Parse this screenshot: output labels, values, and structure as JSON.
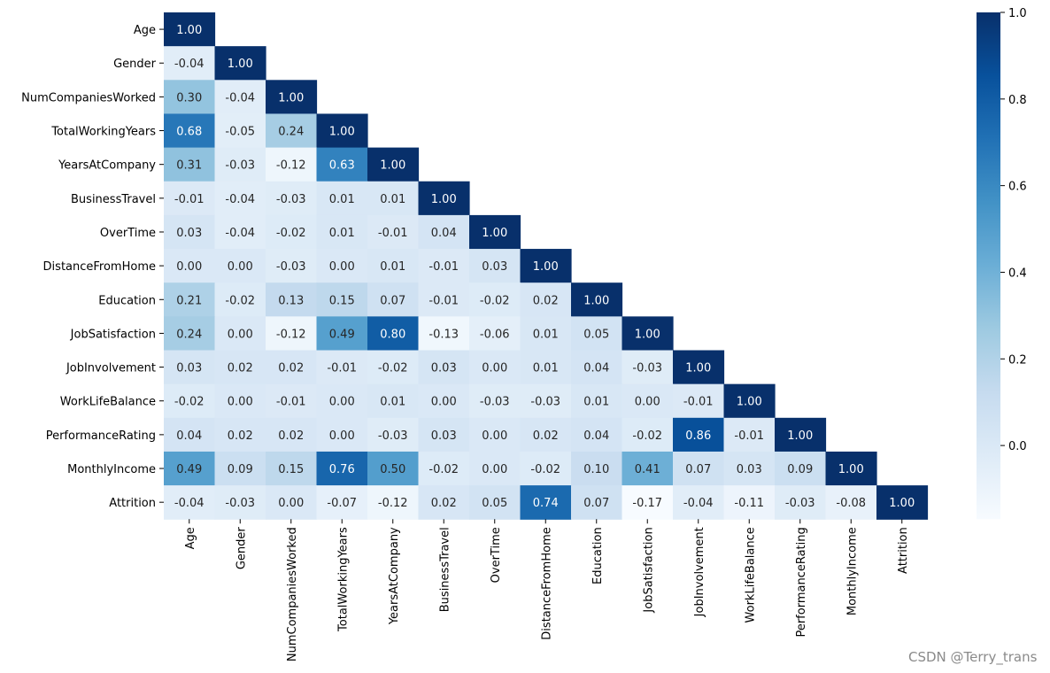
{
  "chart_data": {
    "type": "heatmap",
    "title": "",
    "xlabel": "",
    "ylabel": "",
    "mask": "lower-triangle-with-diagonal",
    "colormap": "Blues",
    "variables": [
      "Age",
      "Gender",
      "NumCompaniesWorked",
      "TotalWorkingYears",
      "YearsAtCompany",
      "BusinessTravel",
      "OverTime",
      "DistanceFromHome",
      "Education",
      "JobSatisfaction",
      "JobInvolvement",
      "WorkLifeBalance",
      "PerformanceRating",
      "MonthlyIncome",
      "Attrition"
    ],
    "values": [
      [
        1.0
      ],
      [
        -0.04,
        1.0
      ],
      [
        0.3,
        -0.04,
        1.0
      ],
      [
        0.68,
        -0.05,
        0.24,
        1.0
      ],
      [
        0.31,
        -0.03,
        -0.12,
        0.63,
        1.0
      ],
      [
        -0.01,
        -0.04,
        -0.03,
        0.01,
        0.01,
        1.0
      ],
      [
        0.03,
        -0.04,
        -0.02,
        0.01,
        -0.01,
        0.04,
        1.0
      ],
      [
        -0.0,
        -0.0,
        -0.03,
        0.0,
        0.01,
        -0.01,
        0.03,
        1.0
      ],
      [
        0.21,
        -0.02,
        0.13,
        0.15,
        0.07,
        -0.01,
        -0.02,
        0.02,
        1.0
      ],
      [
        0.24,
        -0.0,
        -0.12,
        0.49,
        0.8,
        -0.13,
        -0.06,
        0.01,
        0.05,
        1.0
      ],
      [
        0.03,
        0.02,
        0.02,
        -0.01,
        -0.02,
        0.03,
        -0.0,
        0.01,
        0.04,
        -0.03,
        1.0
      ],
      [
        -0.02,
        -0.0,
        -0.01,
        0.0,
        0.01,
        0.0,
        -0.03,
        -0.03,
        0.01,
        -0.0,
        -0.01,
        1.0
      ],
      [
        0.04,
        0.02,
        0.02,
        -0.0,
        -0.03,
        0.03,
        -0.0,
        0.02,
        0.04,
        -0.02,
        0.86,
        -0.01,
        1.0
      ],
      [
        0.49,
        0.09,
        0.15,
        0.76,
        0.5,
        -0.02,
        0.0,
        -0.02,
        0.1,
        0.41,
        0.07,
        0.03,
        0.09,
        1.0
      ],
      [
        -0.04,
        -0.03,
        -0.0,
        -0.07,
        -0.12,
        0.02,
        0.05,
        0.74,
        0.07,
        -0.17,
        -0.04,
        -0.11,
        -0.03,
        -0.08,
        1.0
      ]
    ],
    "colorbar": {
      "range": [
        -0.17,
        1.0
      ],
      "ticks": [
        0.0,
        0.2,
        0.4,
        0.6,
        0.8,
        1.0
      ],
      "tick_labels": [
        "0.0",
        "0.2",
        "0.4",
        "0.6",
        "0.8",
        "1.0"
      ]
    }
  },
  "watermark": "CSDN @Terry_trans"
}
